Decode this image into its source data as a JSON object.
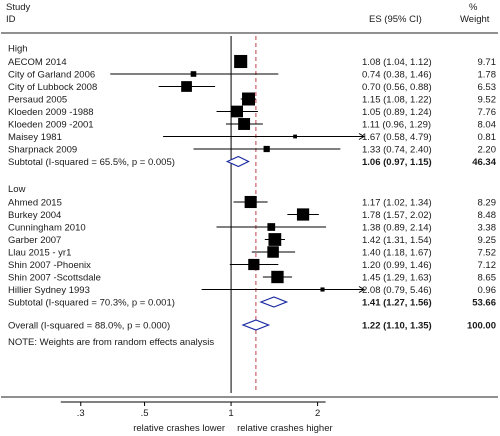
{
  "header": {
    "col_study_line1": "Study",
    "col_study_line2": "ID",
    "col_es": "ES (95% CI)",
    "col_weight_line1": "%",
    "col_weight_line2": "Weight"
  },
  "chart_data": {
    "type": "forest",
    "x_scale": "log",
    "xlim": [
      0.25,
      2.9
    ],
    "x_ticks": [
      {
        "value": 0.3,
        "label": ".3"
      },
      {
        "value": 0.5,
        "label": ".5"
      },
      {
        "value": 1,
        "label": "1"
      },
      {
        "value": 2,
        "label": "2"
      }
    ],
    "xlabel_left": "relative crashes lower",
    "xlabel_right": "relative crashes higher",
    "null_line": 1,
    "overall_reference_line": 1.22,
    "groups": [
      {
        "name": "High",
        "studies": [
          {
            "label": "AECOM 2014",
            "es": 1.08,
            "lo": 1.04,
            "hi": 1.12,
            "weight": 9.71,
            "text": "1.08 (1.04, 1.12)",
            "weight_text": "9.71"
          },
          {
            "label": "City of Garland 2006",
            "es": 0.74,
            "lo": 0.38,
            "hi": 1.46,
            "weight": 1.78,
            "text": "0.74 (0.38, 1.46)",
            "weight_text": "1.78"
          },
          {
            "label": "City of Lubbock 2008",
            "es": 0.7,
            "lo": 0.56,
            "hi": 0.88,
            "weight": 6.53,
            "text": "0.70 (0.56, 0.88)",
            "weight_text": "6.53"
          },
          {
            "label": "Persaud 2005",
            "es": 1.15,
            "lo": 1.08,
            "hi": 1.22,
            "weight": 9.52,
            "text": "1.15 (1.08, 1.22)",
            "weight_text": "9.52"
          },
          {
            "label": "Kloeden 2009 -1988",
            "es": 1.05,
            "lo": 0.89,
            "hi": 1.24,
            "weight": 7.76,
            "text": "1.05 (0.89, 1.24)",
            "weight_text": "7.76"
          },
          {
            "label": "Kloeden 2009 -2001",
            "es": 1.11,
            "lo": 0.96,
            "hi": 1.29,
            "weight": 8.04,
            "text": "1.11 (0.96, 1.29)",
            "weight_text": "8.04"
          },
          {
            "label": "Maisey 1981",
            "es": 1.67,
            "lo": 0.58,
            "hi": 4.79,
            "weight": 0.81,
            "text": "1.67 (0.58, 4.79)",
            "weight_text": "0.81"
          },
          {
            "label": "Sharpnack 2009",
            "es": 1.33,
            "lo": 0.74,
            "hi": 2.4,
            "weight": 2.2,
            "text": "1.33 (0.74, 2.40)",
            "weight_text": "2.20"
          }
        ],
        "subtotal": {
          "label": "Subtotal  (I-squared = 65.5%, p = 0.005)",
          "es": 1.06,
          "lo": 0.97,
          "hi": 1.15,
          "weight": 46.34,
          "text": "1.06 (0.97, 1.15)",
          "weight_text": "46.34"
        }
      },
      {
        "name": "Low",
        "studies": [
          {
            "label": "Ahmed 2015",
            "es": 1.17,
            "lo": 1.02,
            "hi": 1.34,
            "weight": 8.29,
            "text": "1.17 (1.02, 1.34)",
            "weight_text": "8.29"
          },
          {
            "label": "Burkey 2004",
            "es": 1.78,
            "lo": 1.57,
            "hi": 2.02,
            "weight": 8.48,
            "text": "1.78 (1.57, 2.02)",
            "weight_text": "8.48"
          },
          {
            "label": "Cunningham 2010",
            "es": 1.38,
            "lo": 0.89,
            "hi": 2.14,
            "weight": 3.38,
            "text": "1.38 (0.89, 2.14)",
            "weight_text": "3.38"
          },
          {
            "label": "Garber 2007",
            "es": 1.42,
            "lo": 1.31,
            "hi": 1.54,
            "weight": 9.25,
            "text": "1.42 (1.31, 1.54)",
            "weight_text": "9.25"
          },
          {
            "label": "Llau 2015 - yr1",
            "es": 1.4,
            "lo": 1.18,
            "hi": 1.67,
            "weight": 7.52,
            "text": "1.40 (1.18, 1.67)",
            "weight_text": "7.52"
          },
          {
            "label": "Shin 2007 -Phoenix",
            "es": 1.2,
            "lo": 0.99,
            "hi": 1.46,
            "weight": 7.12,
            "text": "1.20 (0.99, 1.46)",
            "weight_text": "7.12"
          },
          {
            "label": "Shin 2007 -Scottsdale",
            "es": 1.45,
            "lo": 1.29,
            "hi": 1.63,
            "weight": 8.65,
            "text": "1.45 (1.29, 1.63)",
            "weight_text": "8.65"
          },
          {
            "label": "Hillier Sydney 1993",
            "es": 2.08,
            "lo": 0.79,
            "hi": 5.46,
            "weight": 0.96,
            "text": "2.08 (0.79, 5.46)",
            "weight_text": "0.96"
          }
        ],
        "subtotal": {
          "label": "Subtotal  (I-squared = 70.3%, p = 0.001)",
          "es": 1.41,
          "lo": 1.27,
          "hi": 1.56,
          "weight": 53.66,
          "text": "1.41 (1.27, 1.56)",
          "weight_text": "53.66"
        }
      }
    ],
    "overall": {
      "label": "Overall  (I-squared = 88.0%, p = 0.000)",
      "es": 1.22,
      "lo": 1.1,
      "hi": 1.35,
      "weight": 100.0,
      "text": "1.22 (1.10, 1.35)",
      "weight_text": "100.00"
    },
    "note": "NOTE: Weights are from random effects analysis"
  }
}
